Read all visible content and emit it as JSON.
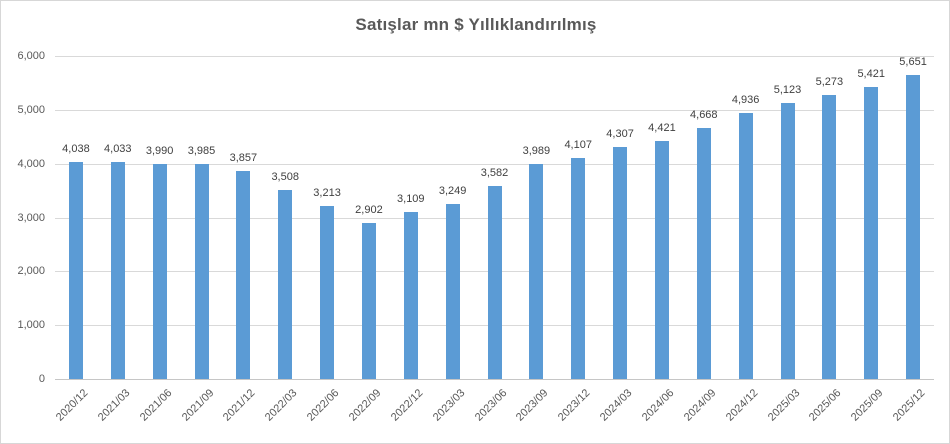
{
  "chart_data": {
    "type": "bar",
    "title": "Satışlar mn $ Yıllıklandırılmış",
    "categories": [
      "2020/12",
      "2021/03",
      "2021/06",
      "2021/09",
      "2021/12",
      "2022/03",
      "2022/06",
      "2022/09",
      "2022/12",
      "2023/03",
      "2023/06",
      "2023/09",
      "2023/12",
      "2024/03",
      "2024/06",
      "2024/09",
      "2024/12",
      "2025/03",
      "2025/06",
      "2025/09",
      "2025/12"
    ],
    "values": [
      4038,
      4033,
      3990,
      3985,
      3857,
      3508,
      3213,
      2902,
      3109,
      3249,
      3582,
      3989,
      4107,
      4307,
      4421,
      4668,
      4936,
      5123,
      5273,
      5421,
      5651
    ],
    "value_labels": [
      "4,038",
      "4,033",
      "3,990",
      "3,985",
      "3,857",
      "3,508",
      "3,213",
      "2,902",
      "3,109",
      "3,249",
      "3,582",
      "3,989",
      "4,107",
      "4,307",
      "4,421",
      "4,668",
      "4,936",
      "5,123",
      "5,273",
      "5,421",
      "5,651"
    ],
    "y_ticks": [
      "0",
      "1,000",
      "2,000",
      "3,000",
      "4,000",
      "5,000",
      "6,000"
    ],
    "y_tick_values": [
      0,
      1000,
      2000,
      3000,
      4000,
      5000,
      6000
    ],
    "ylim": [
      0,
      6000
    ],
    "xlabel": "",
    "ylabel": "",
    "grid": true,
    "legend": "none",
    "bar_color": "#5b9bd5",
    "gridline_color": "#d9d9d9",
    "axis_label_color": "#595959",
    "data_label_color": "#404040",
    "title_color": "#595959"
  }
}
